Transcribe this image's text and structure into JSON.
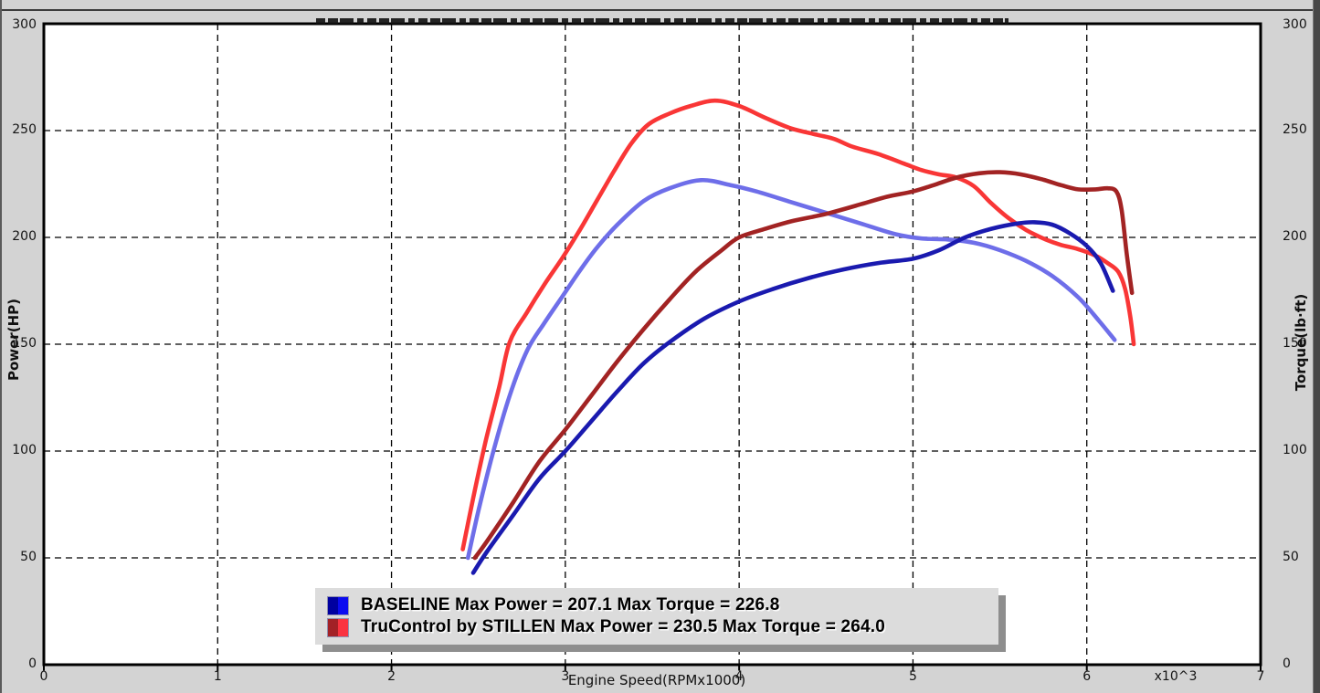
{
  "axes": {
    "left": {
      "title": "Power(HP)",
      "ticks": [
        300,
        250,
        200,
        150,
        100,
        50,
        0
      ]
    },
    "right": {
      "title": "Torque(lb·ft)",
      "ticks": [
        300,
        250,
        200,
        150,
        100,
        50,
        0
      ]
    },
    "bottom": {
      "title": "Engine Speed(RPMx1000)",
      "ticks": [
        0,
        1,
        2,
        3,
        4,
        5,
        6,
        7
      ],
      "multiplier_label": "x10^3"
    }
  },
  "legend": {
    "entries": [
      {
        "label": "BASELINE Max Power = 207.1 Max Torque = 226.8",
        "swatch_dark": "#0000a0",
        "swatch_bright": "#0b0bf0"
      },
      {
        "label": "TruControl by STILLEN Max Power = 230.5 Max Torque = 264.0",
        "swatch_dark": "#a32126",
        "swatch_bright": "#fa3340"
      }
    ]
  },
  "chart_data": {
    "type": "line",
    "xlabel": "Engine Speed(RPMx1000)",
    "ylabel_left": "Power(HP)",
    "ylabel_right": "Torque(lb·ft)",
    "xlim": [
      0,
      7
    ],
    "ylim": [
      0,
      300
    ],
    "x_ticks": [
      0,
      1,
      2,
      3,
      4,
      5,
      6,
      7
    ],
    "y_ticks": [
      0,
      50,
      100,
      150,
      200,
      250,
      300
    ],
    "grid": "dashed-black",
    "legend_position": "bottom-center-inside",
    "datasets": [
      {
        "name": "BASELINE",
        "max_power": 207.1,
        "max_torque": 226.8
      },
      {
        "name": "TruControl by STILLEN",
        "max_power": 230.5,
        "max_torque": 264.0
      }
    ],
    "series": [
      {
        "name": "BASELINE Power (HP)",
        "color": "#1a1aaf",
        "axis": "left",
        "points": [
          [
            2.47,
            43
          ],
          [
            2.55,
            53
          ],
          [
            2.7,
            70
          ],
          [
            2.85,
            87
          ],
          [
            3.0,
            100
          ],
          [
            3.15,
            114
          ],
          [
            3.3,
            128
          ],
          [
            3.45,
            141
          ],
          [
            3.6,
            151
          ],
          [
            3.8,
            162
          ],
          [
            4.0,
            170
          ],
          [
            4.2,
            176
          ],
          [
            4.4,
            181
          ],
          [
            4.6,
            185
          ],
          [
            4.8,
            188
          ],
          [
            5.0,
            190
          ],
          [
            5.15,
            194
          ],
          [
            5.3,
            200
          ],
          [
            5.45,
            204
          ],
          [
            5.6,
            206.5
          ],
          [
            5.7,
            207.1
          ],
          [
            5.8,
            206
          ],
          [
            5.9,
            202
          ],
          [
            6.0,
            196
          ],
          [
            6.08,
            188
          ],
          [
            6.15,
            175
          ]
        ]
      },
      {
        "name": "BASELINE Torque (lb·ft)",
        "color": "#6e6ee9",
        "axis": "right",
        "points": [
          [
            2.44,
            50
          ],
          [
            2.5,
            72
          ],
          [
            2.58,
            98
          ],
          [
            2.68,
            126
          ],
          [
            2.78,
            147
          ],
          [
            2.88,
            160
          ],
          [
            2.98,
            172
          ],
          [
            3.08,
            184
          ],
          [
            3.18,
            195
          ],
          [
            3.3,
            206
          ],
          [
            3.45,
            217
          ],
          [
            3.6,
            223
          ],
          [
            3.78,
            226.8
          ],
          [
            3.95,
            224.5
          ],
          [
            4.1,
            221.5
          ],
          [
            4.3,
            216.5
          ],
          [
            4.5,
            211.5
          ],
          [
            4.7,
            206.5
          ],
          [
            4.9,
            201.5
          ],
          [
            5.05,
            199.5
          ],
          [
            5.2,
            199
          ],
          [
            5.35,
            197.5
          ],
          [
            5.5,
            194
          ],
          [
            5.65,
            189
          ],
          [
            5.8,
            182
          ],
          [
            5.95,
            172
          ],
          [
            6.07,
            161
          ],
          [
            6.16,
            152
          ]
        ]
      },
      {
        "name": "TruControl by STILLEN Power (HP)",
        "color": "#a22323",
        "axis": "left",
        "points": [
          [
            2.48,
            50
          ],
          [
            2.56,
            59
          ],
          [
            2.7,
            76
          ],
          [
            2.85,
            95
          ],
          [
            3.0,
            110
          ],
          [
            3.15,
            126
          ],
          [
            3.3,
            142
          ],
          [
            3.45,
            157
          ],
          [
            3.6,
            171
          ],
          [
            3.75,
            184
          ],
          [
            3.9,
            194
          ],
          [
            4.0,
            200
          ],
          [
            4.15,
            204
          ],
          [
            4.3,
            207.5
          ],
          [
            4.5,
            211
          ],
          [
            4.7,
            215.5
          ],
          [
            4.85,
            219
          ],
          [
            5.0,
            221.5
          ],
          [
            5.12,
            224.5
          ],
          [
            5.25,
            228
          ],
          [
            5.38,
            230
          ],
          [
            5.5,
            230.5
          ],
          [
            5.62,
            229.5
          ],
          [
            5.75,
            227
          ],
          [
            5.85,
            224.5
          ],
          [
            5.95,
            222.5
          ],
          [
            6.05,
            222.5
          ],
          [
            6.12,
            223
          ],
          [
            6.17,
            221.5
          ],
          [
            6.2,
            213
          ],
          [
            6.23,
            192
          ],
          [
            6.26,
            174
          ]
        ]
      },
      {
        "name": "TruControl by STILLEN Torque (lb·ft)",
        "color": "#f93636",
        "axis": "right",
        "points": [
          [
            2.41,
            54
          ],
          [
            2.47,
            78
          ],
          [
            2.54,
            104
          ],
          [
            2.62,
            130
          ],
          [
            2.68,
            151
          ],
          [
            2.78,
            165
          ],
          [
            2.88,
            178
          ],
          [
            2.98,
            190
          ],
          [
            3.08,
            203
          ],
          [
            3.18,
            217
          ],
          [
            3.28,
            231
          ],
          [
            3.38,
            244
          ],
          [
            3.48,
            253
          ],
          [
            3.6,
            258
          ],
          [
            3.72,
            261.5
          ],
          [
            3.86,
            264
          ],
          [
            4.0,
            261.5
          ],
          [
            4.15,
            256
          ],
          [
            4.3,
            251
          ],
          [
            4.45,
            248
          ],
          [
            4.55,
            246
          ],
          [
            4.65,
            242.5
          ],
          [
            4.8,
            239
          ],
          [
            4.95,
            234.5
          ],
          [
            5.05,
            231.5
          ],
          [
            5.15,
            229.5
          ],
          [
            5.25,
            228
          ],
          [
            5.35,
            224
          ],
          [
            5.45,
            216
          ],
          [
            5.55,
            209
          ],
          [
            5.65,
            203.5
          ],
          [
            5.75,
            199.5
          ],
          [
            5.85,
            196.5
          ],
          [
            5.95,
            194.5
          ],
          [
            6.05,
            191.5
          ],
          [
            6.12,
            188
          ],
          [
            6.18,
            184
          ],
          [
            6.22,
            176
          ],
          [
            6.25,
            163
          ],
          [
            6.27,
            150
          ]
        ]
      }
    ]
  }
}
